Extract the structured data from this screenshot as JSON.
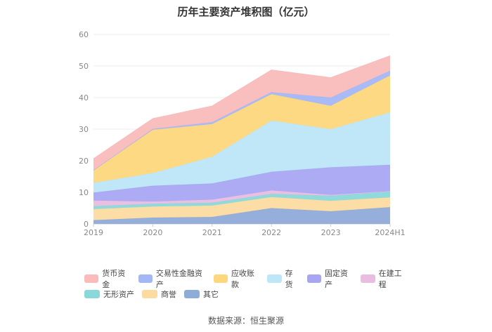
{
  "chart_data": {
    "type": "area",
    "stacked": true,
    "title": "历年主要资产堆积图（亿元）",
    "categories": [
      "2019",
      "2020",
      "2021",
      "2022",
      "2023",
      "2024H1"
    ],
    "ylim": [
      0,
      60
    ],
    "yticks": [
      0,
      10,
      20,
      30,
      40,
      50,
      60
    ],
    "grid": true,
    "legend_position": "bottom",
    "series": [
      {
        "name": "其它",
        "color": "#8fabd8",
        "values": [
          1.2,
          2.0,
          2.2,
          5.0,
          4.0,
          5.3
        ]
      },
      {
        "name": "商誉",
        "color": "#fcdba0",
        "values": [
          3.5,
          3.5,
          3.6,
          3.5,
          3.3,
          3.1
        ]
      },
      {
        "name": "无形资产",
        "color": "#8bd8da",
        "values": [
          0.9,
          0.9,
          0.9,
          1.0,
          1.6,
          1.9
        ]
      },
      {
        "name": "在建工程",
        "color": "#e8bde0",
        "values": [
          1.8,
          0.7,
          1.0,
          1.1,
          0.3,
          0.1
        ]
      },
      {
        "name": "固定资产",
        "color": "#a8a6f3",
        "values": [
          2.5,
          5.0,
          5.1,
          5.9,
          8.7,
          8.3
        ]
      },
      {
        "name": "存货",
        "color": "#bde6f8",
        "values": [
          3.1,
          4.0,
          8.5,
          16.2,
          12.1,
          16.6
        ]
      },
      {
        "name": "应收账款",
        "color": "#fdd77c",
        "values": [
          4.0,
          13.7,
          10.3,
          8.4,
          7.4,
          11.7
        ]
      },
      {
        "name": "交易性金融资产",
        "color": "#a3b7f7",
        "values": [
          0.0,
          0.3,
          0.6,
          0.6,
          2.6,
          1.5
        ]
      },
      {
        "name": "货币资金",
        "color": "#f9bcbb",
        "values": [
          3.6,
          3.2,
          5.1,
          7.0,
          6.3,
          4.7
        ]
      }
    ],
    "legend_order": [
      "货币资金",
      "交易性金融资产",
      "应收账款",
      "存货",
      "固定资产",
      "在建工程",
      "无形资产",
      "商誉",
      "其它"
    ]
  },
  "source_text": "数据来源：恒生聚源"
}
